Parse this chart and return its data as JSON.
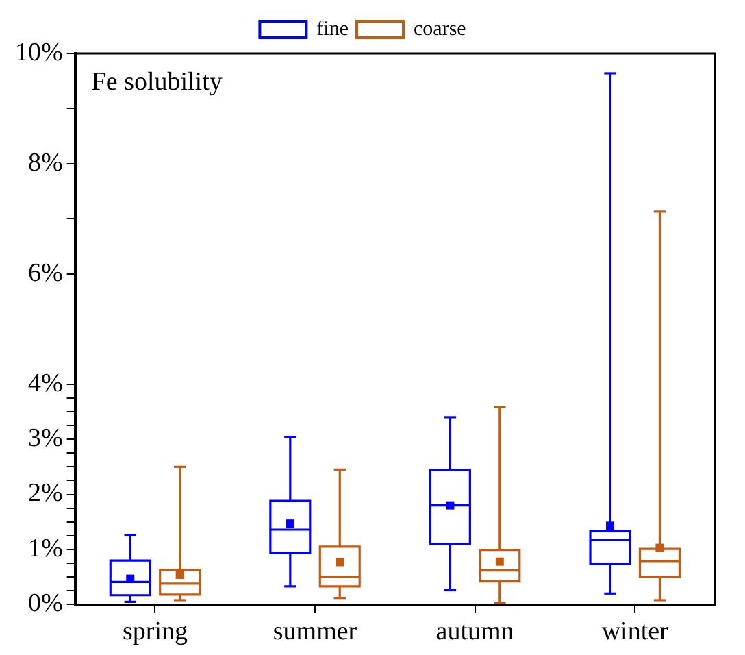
{
  "chart_data": {
    "type": "box",
    "title": "Fe solubility",
    "categories": [
      "spring",
      "summer",
      "autumn",
      "winter"
    ],
    "series": [
      {
        "name": "fine",
        "color": "#0000ff",
        "boxes": [
          {
            "low": 0.05,
            "q1": 0.17,
            "median": 0.41,
            "q3": 0.8,
            "high": 1.26,
            "mean": 0.47
          },
          {
            "low": 0.33,
            "q1": 0.94,
            "median": 1.36,
            "q3": 1.88,
            "high": 3.04,
            "mean": 1.47
          },
          {
            "low": 0.26,
            "q1": 1.1,
            "median": 1.8,
            "q3": 2.44,
            "high": 3.4,
            "mean": 1.8
          },
          {
            "low": 0.2,
            "q1": 0.74,
            "median": 1.17,
            "q3": 1.33,
            "high": 9.64,
            "mean": 1.43
          }
        ]
      },
      {
        "name": "coarse",
        "color": "#c55a11",
        "boxes": [
          {
            "low": 0.08,
            "q1": 0.18,
            "median": 0.38,
            "q3": 0.63,
            "high": 2.5,
            "mean": 0.54
          },
          {
            "low": 0.12,
            "q1": 0.33,
            "median": 0.5,
            "q3": 1.05,
            "high": 2.45,
            "mean": 0.77
          },
          {
            "low": 0.03,
            "q1": 0.42,
            "median": 0.62,
            "q3": 0.99,
            "high": 3.58,
            "mean": 0.78
          },
          {
            "low": 0.08,
            "q1": 0.5,
            "median": 0.79,
            "q3": 1.01,
            "high": 7.13,
            "mean": 1.03
          }
        ]
      }
    ],
    "ylim": [
      0,
      10
    ],
    "yticks": [
      {
        "value": 0,
        "label": "0%"
      },
      {
        "value": 0.25,
        "label": null
      },
      {
        "value": 0.5,
        "label": null
      },
      {
        "value": 0.75,
        "label": null
      },
      {
        "value": 1,
        "label": "1%"
      },
      {
        "value": 1.25,
        "label": null
      },
      {
        "value": 1.5,
        "label": null
      },
      {
        "value": 1.75,
        "label": null
      },
      {
        "value": 2,
        "label": "2%"
      },
      {
        "value": 2.25,
        "label": null
      },
      {
        "value": 2.5,
        "label": null
      },
      {
        "value": 2.75,
        "label": null
      },
      {
        "value": 3,
        "label": "3%"
      },
      {
        "value": 3.25,
        "label": null
      },
      {
        "value": 3.5,
        "label": null
      },
      {
        "value": 3.75,
        "label": null
      },
      {
        "value": 4,
        "label": "4%"
      },
      {
        "value": 6,
        "label": "6%"
      },
      {
        "value": 7,
        "label": null
      },
      {
        "value": 8,
        "label": "8%"
      },
      {
        "value": 9,
        "label": null
      },
      {
        "value": 10,
        "label": "10%"
      }
    ],
    "grid": false,
    "legend": "top"
  }
}
